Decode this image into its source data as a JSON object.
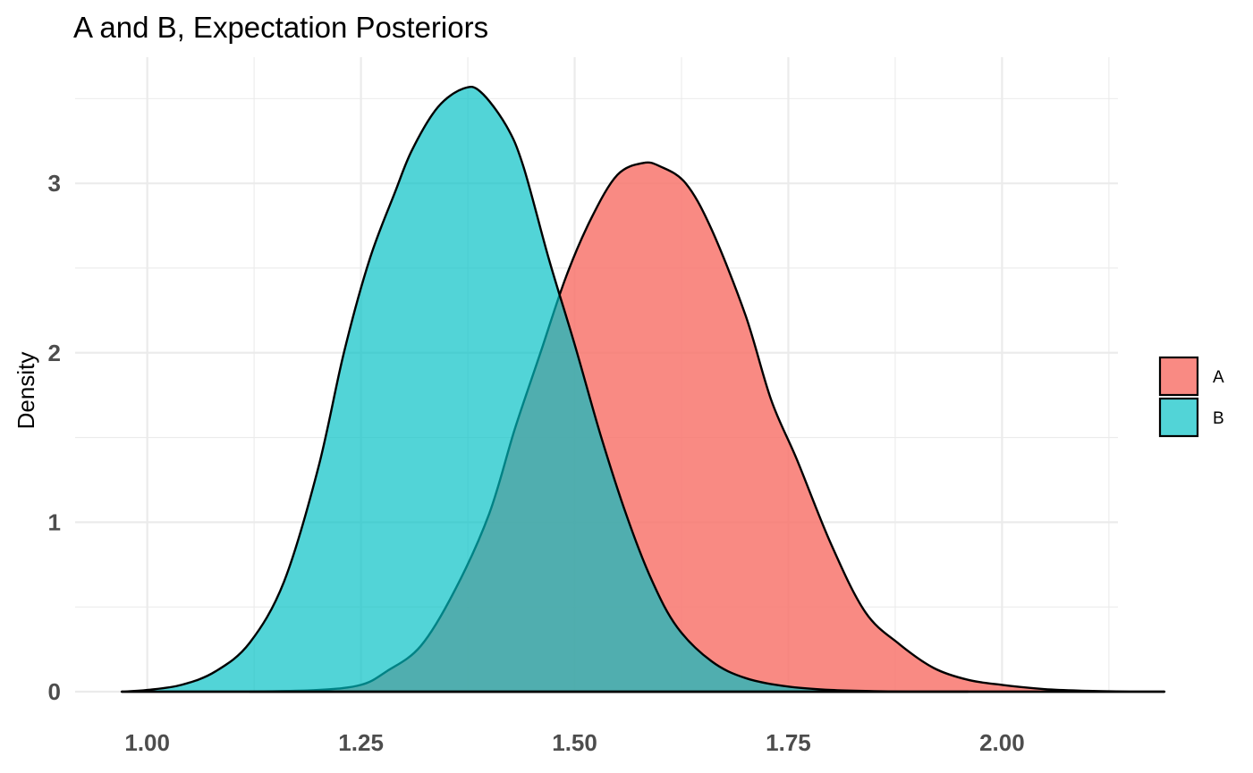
{
  "chart_data": {
    "type": "area",
    "subtype": "density",
    "title": "A and B, Expectation Posteriors",
    "xlabel": "",
    "ylabel": "Density",
    "xlim": [
      0.97,
      2.19
    ],
    "ylim": [
      0,
      3.56
    ],
    "x_ticks": [
      {
        "value": 1.0,
        "label": "1.00"
      },
      {
        "value": 1.25,
        "label": "1.25"
      },
      {
        "value": 1.5,
        "label": "1.50"
      },
      {
        "value": 1.75,
        "label": "1.75"
      },
      {
        "value": 2.0,
        "label": "2.00"
      }
    ],
    "x_minor_ticks": [
      1.125,
      1.375,
      1.625,
      1.875,
      2.125
    ],
    "y_ticks": [
      {
        "value": 0,
        "label": "0"
      },
      {
        "value": 1,
        "label": "1"
      },
      {
        "value": 2,
        "label": "2"
      },
      {
        "value": 3,
        "label": "3"
      }
    ],
    "y_minor_ticks": [
      0.5,
      1.5,
      2.5,
      3.5
    ],
    "grid": true,
    "legend_position": "right",
    "series": [
      {
        "name": "A",
        "color": "#F8766D",
        "opacity": 0.85,
        "x": [
          1.12,
          1.2,
          1.25,
          1.28,
          1.32,
          1.36,
          1.4,
          1.43,
          1.46,
          1.49,
          1.52,
          1.55,
          1.58,
          1.6,
          1.63,
          1.66,
          1.7,
          1.73,
          1.76,
          1.8,
          1.84,
          1.88,
          1.92,
          1.96,
          2.0,
          2.05,
          2.1,
          2.15,
          2.19
        ],
        "y": [
          0.0,
          0.01,
          0.04,
          0.12,
          0.27,
          0.6,
          1.05,
          1.55,
          2.0,
          2.45,
          2.8,
          3.05,
          3.12,
          3.1,
          3.0,
          2.73,
          2.22,
          1.72,
          1.37,
          0.87,
          0.47,
          0.28,
          0.14,
          0.07,
          0.04,
          0.015,
          0.005,
          0.0,
          0.0
        ]
      },
      {
        "name": "B",
        "color": "#00BFC4",
        "opacity": 0.68,
        "x": [
          0.97,
          1.0,
          1.04,
          1.08,
          1.12,
          1.16,
          1.2,
          1.23,
          1.26,
          1.29,
          1.31,
          1.34,
          1.37,
          1.39,
          1.42,
          1.44,
          1.47,
          1.5,
          1.53,
          1.56,
          1.59,
          1.62,
          1.66,
          1.7,
          1.75,
          1.8,
          1.85,
          1.9,
          1.96
        ],
        "y": [
          0.0,
          0.01,
          0.04,
          0.12,
          0.29,
          0.65,
          1.32,
          2.0,
          2.55,
          2.95,
          3.2,
          3.45,
          3.56,
          3.54,
          3.34,
          3.1,
          2.55,
          2.05,
          1.52,
          1.05,
          0.66,
          0.38,
          0.18,
          0.08,
          0.03,
          0.01,
          0.003,
          0.0,
          0.0
        ]
      }
    ]
  }
}
